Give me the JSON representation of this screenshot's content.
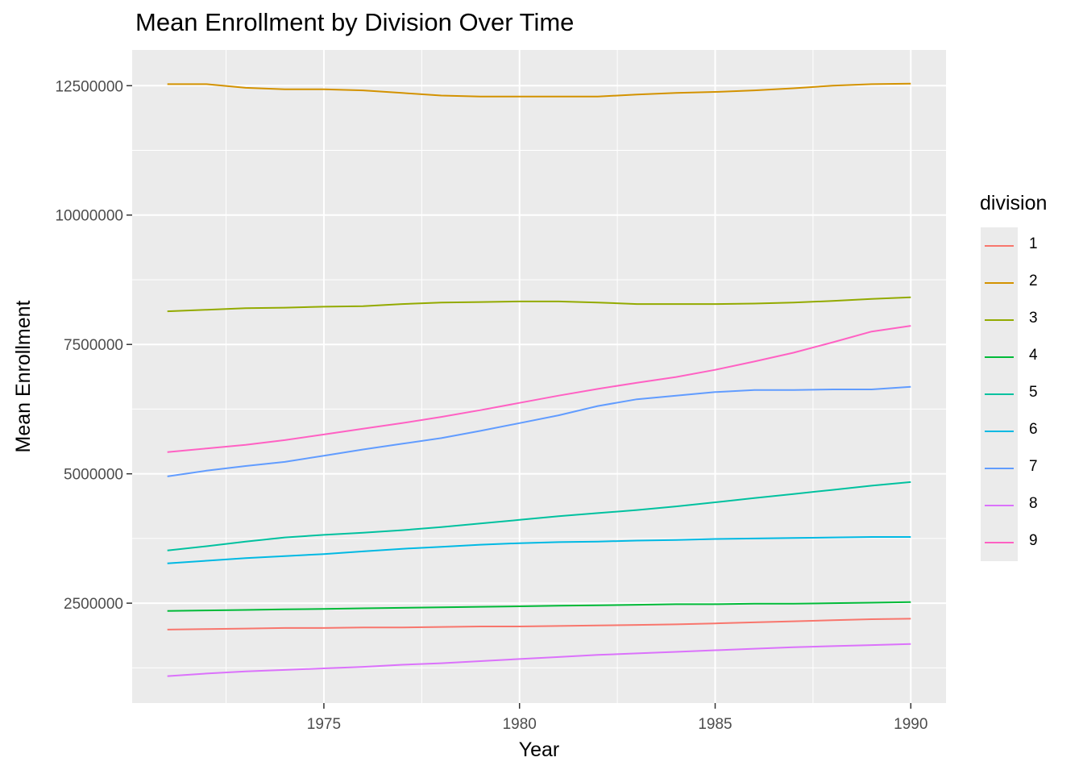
{
  "chart_data": {
    "type": "line",
    "title": "Mean Enrollment by Division Over Time",
    "xlabel": "Year",
    "ylabel": "Mean Enrollment",
    "x": [
      1971,
      1972,
      1973,
      1974,
      1975,
      1976,
      1977,
      1978,
      1979,
      1980,
      1981,
      1982,
      1983,
      1984,
      1985,
      1986,
      1987,
      1988,
      1989,
      1990
    ],
    "xlim": [
      1970.1,
      1990.9
    ],
    "ylim": [
      570000,
      13190000
    ],
    "x_ticks": [
      1975,
      1980,
      1985,
      1990
    ],
    "x_tick_labels": [
      "1975",
      "1980",
      "1985",
      "1990"
    ],
    "y_ticks": [
      2500000,
      5000000,
      7500000,
      10000000,
      12500000
    ],
    "y_tick_labels": [
      "2500000",
      "5000000",
      "7500000",
      "10000000",
      "12500000"
    ],
    "grid": true,
    "legend_title": "division",
    "legend_position": "right",
    "series": [
      {
        "name": "1",
        "color": "#F8766D",
        "values": [
          1990000,
          2000000,
          2010000,
          2020000,
          2020000,
          2030000,
          2030000,
          2040000,
          2050000,
          2050000,
          2060000,
          2070000,
          2080000,
          2090000,
          2110000,
          2130000,
          2150000,
          2170000,
          2190000,
          2200000
        ]
      },
      {
        "name": "2",
        "color": "#D39200",
        "values": [
          12530000,
          12530000,
          12460000,
          12430000,
          12430000,
          12410000,
          12360000,
          12310000,
          12290000,
          12290000,
          12290000,
          12290000,
          12330000,
          12360000,
          12380000,
          12410000,
          12450000,
          12500000,
          12530000,
          12540000
        ]
      },
      {
        "name": "3",
        "color": "#93AA00",
        "values": [
          8140000,
          8170000,
          8200000,
          8210000,
          8230000,
          8240000,
          8280000,
          8310000,
          8320000,
          8330000,
          8330000,
          8310000,
          8280000,
          8280000,
          8280000,
          8290000,
          8310000,
          8340000,
          8380000,
          8410000
        ]
      },
      {
        "name": "4",
        "color": "#00BA38",
        "values": [
          2350000,
          2360000,
          2370000,
          2380000,
          2390000,
          2400000,
          2410000,
          2420000,
          2430000,
          2440000,
          2450000,
          2460000,
          2470000,
          2480000,
          2480000,
          2490000,
          2490000,
          2500000,
          2510000,
          2520000
        ]
      },
      {
        "name": "5",
        "color": "#00C19F",
        "values": [
          3520000,
          3600000,
          3690000,
          3770000,
          3820000,
          3860000,
          3910000,
          3970000,
          4040000,
          4110000,
          4180000,
          4240000,
          4300000,
          4370000,
          4450000,
          4530000,
          4610000,
          4690000,
          4770000,
          4840000
        ]
      },
      {
        "name": "6",
        "color": "#00B9E3",
        "values": [
          3270000,
          3320000,
          3370000,
          3410000,
          3450000,
          3500000,
          3550000,
          3590000,
          3630000,
          3660000,
          3680000,
          3690000,
          3710000,
          3720000,
          3740000,
          3750000,
          3760000,
          3770000,
          3780000,
          3780000
        ]
      },
      {
        "name": "7",
        "color": "#619CFF",
        "values": [
          4950000,
          5060000,
          5150000,
          5230000,
          5350000,
          5470000,
          5580000,
          5690000,
          5830000,
          5980000,
          6130000,
          6310000,
          6440000,
          6510000,
          6580000,
          6620000,
          6620000,
          6630000,
          6630000,
          6680000
        ]
      },
      {
        "name": "8",
        "color": "#DB72FB",
        "values": [
          1090000,
          1140000,
          1180000,
          1210000,
          1240000,
          1270000,
          1310000,
          1340000,
          1380000,
          1420000,
          1460000,
          1500000,
          1530000,
          1560000,
          1590000,
          1620000,
          1650000,
          1670000,
          1690000,
          1710000
        ]
      },
      {
        "name": "9",
        "color": "#FF61C3",
        "values": [
          5420000,
          5490000,
          5560000,
          5650000,
          5760000,
          5870000,
          5980000,
          6100000,
          6230000,
          6370000,
          6510000,
          6640000,
          6760000,
          6870000,
          7010000,
          7170000,
          7340000,
          7540000,
          7750000,
          7860000
        ]
      }
    ]
  }
}
